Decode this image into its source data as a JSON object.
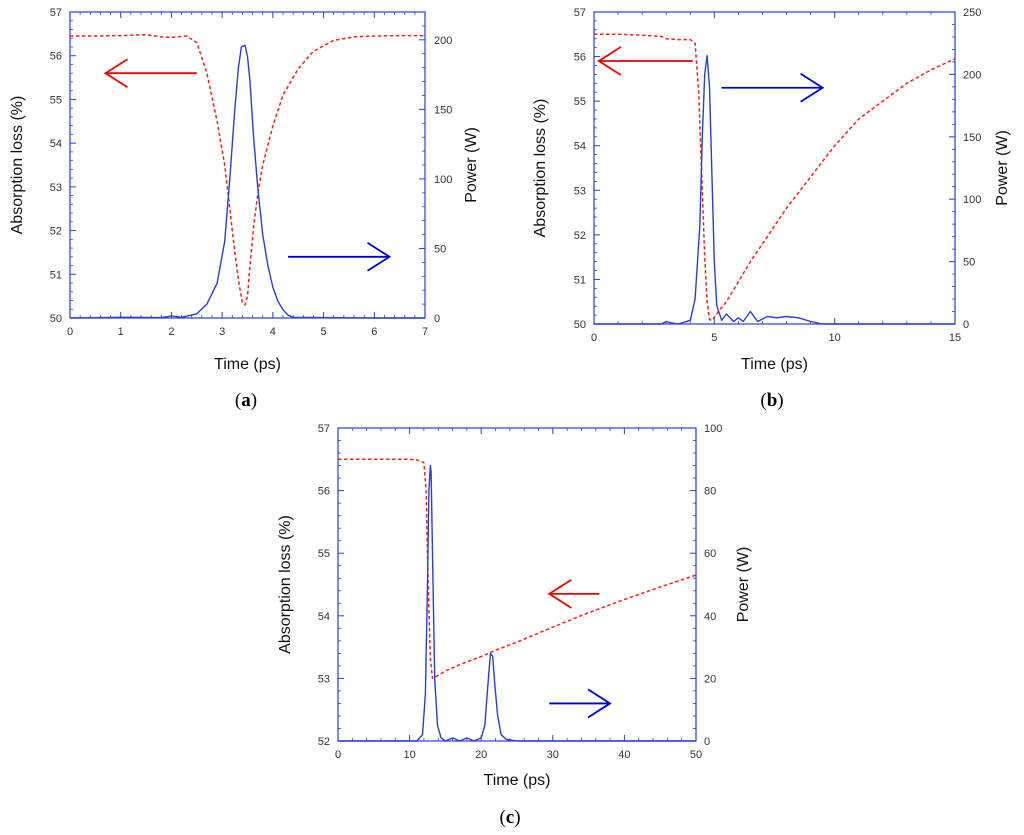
{
  "colors": {
    "absorption": "#e8281e",
    "power": "#2a3fd0",
    "axis": "#2a3fd0",
    "left_arrow": "#e60000",
    "right_arrow": "#0000c8"
  },
  "chart_data": [
    {
      "panel": "a",
      "panel_label": "a",
      "type": "line",
      "xlabel": "Time (ps)",
      "ylabel_left": "Absorption loss (%)",
      "ylabel_right": "Power (W)",
      "xlim": [
        0,
        7
      ],
      "ylim_left": [
        50,
        57
      ],
      "ylim_right": [
        0,
        220
      ],
      "x_ticks": [
        0,
        1,
        2,
        3,
        4,
        5,
        6,
        7
      ],
      "y_left_ticks": [
        50,
        51,
        52,
        53,
        54,
        55,
        56,
        57
      ],
      "y_right_ticks": [
        0,
        50,
        100,
        150,
        200
      ],
      "series": [
        {
          "name": "Absorption loss",
          "axis": "left",
          "style": "dashed",
          "x": [
            0,
            0.5,
            1.0,
            1.5,
            1.8,
            2.0,
            2.3,
            2.5,
            2.7,
            2.9,
            3.05,
            3.15,
            3.25,
            3.33,
            3.4,
            3.45,
            3.5,
            3.55,
            3.62,
            3.7,
            3.8,
            4.0,
            4.2,
            4.5,
            4.8,
            5.2,
            5.6,
            6.0,
            6.5,
            7.0
          ],
          "y": [
            56.45,
            56.45,
            56.46,
            56.48,
            56.43,
            56.42,
            56.45,
            56.3,
            55.6,
            54.5,
            53.5,
            52.5,
            51.5,
            50.8,
            50.35,
            50.3,
            50.5,
            51.2,
            52.1,
            52.8,
            53.5,
            54.4,
            55.1,
            55.7,
            56.1,
            56.35,
            56.43,
            56.45,
            56.46,
            56.46
          ]
        },
        {
          "name": "Power",
          "axis": "right",
          "style": "solid",
          "x": [
            0,
            1.0,
            1.8,
            2.0,
            2.2,
            2.5,
            2.7,
            2.9,
            3.05,
            3.15,
            3.25,
            3.32,
            3.38,
            3.45,
            3.5,
            3.55,
            3.62,
            3.7,
            3.8,
            3.9,
            4.0,
            4.1,
            4.2,
            4.3,
            4.4,
            5.0,
            6.0,
            7.0
          ],
          "y": [
            0,
            0.5,
            0.3,
            1.5,
            0.5,
            3,
            10,
            25,
            55,
            100,
            150,
            180,
            195,
            196,
            188,
            170,
            130,
            95,
            60,
            38,
            22,
            12,
            6,
            2,
            0.5,
            0.3,
            0,
            0
          ]
        }
      ],
      "annotations": [
        {
          "type": "arrow",
          "direction": "left",
          "color": "red",
          "meaning": "left axis",
          "from": [
            2.5,
            55.6
          ],
          "to": [
            0.7,
            55.6
          ]
        },
        {
          "type": "arrow",
          "direction": "right",
          "color": "blue",
          "meaning": "right axis",
          "from": [
            4.3,
            51.4
          ],
          "to": [
            6.3,
            51.4
          ]
        }
      ]
    },
    {
      "panel": "b",
      "panel_label": "b",
      "type": "line",
      "xlabel": "Time (ps)",
      "ylabel_left": "Absorption loss (%)",
      "ylabel_right": "Power (W)",
      "xlim": [
        0,
        15
      ],
      "ylim_left": [
        50,
        57
      ],
      "ylim_right": [
        0,
        250
      ],
      "x_ticks": [
        0,
        5,
        10,
        15
      ],
      "y_left_ticks": [
        50,
        51,
        52,
        53,
        54,
        55,
        56,
        57
      ],
      "y_right_ticks": [
        0,
        50,
        100,
        150,
        200,
        250
      ],
      "series": [
        {
          "name": "Absorption loss",
          "axis": "left",
          "style": "dashed",
          "x": [
            0,
            1.0,
            2.0,
            2.8,
            3.0,
            3.5,
            4.0,
            4.2,
            4.35,
            4.5,
            4.6,
            4.7,
            4.8,
            4.9,
            5.0,
            5.2,
            5.5,
            6.0,
            6.5,
            7.0,
            8.0,
            9.0,
            10.0,
            11.0,
            12.0,
            13.0,
            14.0,
            15.0
          ],
          "y": [
            56.5,
            56.5,
            56.48,
            56.45,
            56.4,
            56.38,
            56.38,
            56.3,
            55.2,
            53.0,
            51.5,
            50.5,
            50.1,
            50.08,
            50.15,
            50.3,
            50.5,
            50.95,
            51.4,
            51.8,
            52.6,
            53.3,
            54.0,
            54.6,
            55.0,
            55.4,
            55.7,
            55.95
          ]
        },
        {
          "name": "Power",
          "axis": "right",
          "style": "solid",
          "x": [
            0,
            2.8,
            3.0,
            3.2,
            3.5,
            4.0,
            4.2,
            4.4,
            4.5,
            4.6,
            4.7,
            4.8,
            4.9,
            5.0,
            5.1,
            5.3,
            5.5,
            5.8,
            6.0,
            6.2,
            6.5,
            6.8,
            7.2,
            7.6,
            8.0,
            8.5,
            9.0,
            9.5,
            10.0,
            15.0
          ],
          "y": [
            0,
            0,
            2,
            1,
            0,
            3,
            20,
            80,
            150,
            200,
            215,
            190,
            120,
            50,
            15,
            3,
            8,
            2,
            5,
            2,
            10,
            2,
            6,
            5,
            6,
            5,
            2,
            0,
            0,
            0
          ]
        }
      ],
      "annotations": [
        {
          "type": "arrow",
          "direction": "left",
          "color": "red",
          "meaning": "left axis",
          "from": [
            4.1,
            55.9
          ],
          "to": [
            0.2,
            55.9
          ]
        },
        {
          "type": "arrow",
          "direction": "right",
          "color": "blue",
          "meaning": "right axis",
          "from": [
            5.3,
            55.3
          ],
          "to": [
            9.5,
            55.3
          ]
        }
      ]
    },
    {
      "panel": "c",
      "panel_label": "c",
      "type": "line",
      "xlabel": "Time (ps)",
      "ylabel_left": "Absorption loss (%)",
      "ylabel_right": "Power (W)",
      "xlim": [
        0,
        50
      ],
      "ylim_left": [
        52,
        57
      ],
      "ylim_right": [
        0,
        100
      ],
      "x_ticks": [
        0,
        10,
        20,
        30,
        40,
        50
      ],
      "y_left_ticks": [
        52,
        53,
        54,
        55,
        56,
        57
      ],
      "y_right_ticks": [
        0,
        20,
        40,
        60,
        80,
        100
      ],
      "series": [
        {
          "name": "Absorption loss",
          "axis": "left",
          "style": "dashed",
          "x": [
            0,
            5,
            10,
            11,
            12,
            12.3,
            12.6,
            12.9,
            13.2,
            14,
            15,
            17,
            20,
            22,
            25,
            30,
            35,
            40,
            45,
            50
          ],
          "y": [
            56.5,
            56.5,
            56.5,
            56.49,
            56.45,
            56.0,
            54.5,
            53.3,
            53.0,
            53.05,
            53.12,
            53.22,
            53.35,
            53.45,
            53.58,
            53.82,
            54.05,
            54.26,
            54.46,
            54.65
          ]
        },
        {
          "name": "Power",
          "axis": "right",
          "style": "solid",
          "x": [
            0,
            11,
            11.8,
            12.2,
            12.5,
            12.7,
            12.9,
            13.0,
            13.2,
            13.5,
            13.9,
            14.4,
            15,
            16,
            17,
            18,
            19,
            20,
            20.5,
            21.0,
            21.3,
            21.6,
            21.9,
            22.3,
            22.8,
            23.5,
            25,
            50
          ],
          "y": [
            0,
            0,
            2,
            15,
            50,
            80,
            88,
            86,
            60,
            20,
            5,
            1,
            0,
            1,
            0,
            1,
            0,
            1,
            5,
            20,
            28,
            27,
            18,
            8,
            2,
            0.5,
            0,
            0
          ]
        }
      ],
      "annotations": [
        {
          "type": "arrow",
          "direction": "left",
          "color": "red",
          "meaning": "left axis",
          "from": [
            36.5,
            54.35
          ],
          "to": [
            29.5,
            54.35
          ]
        },
        {
          "type": "arrow",
          "direction": "right",
          "color": "blue",
          "meaning": "right axis",
          "from": [
            29.5,
            52.6
          ],
          "to": [
            38,
            52.6
          ]
        }
      ]
    }
  ]
}
